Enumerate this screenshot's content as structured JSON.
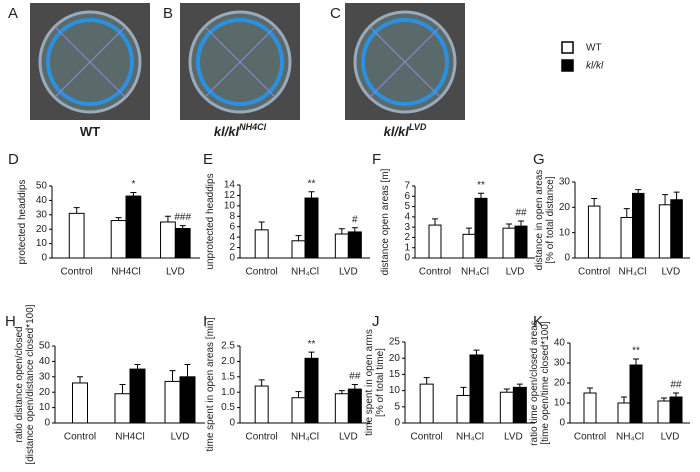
{
  "photos": [
    {
      "letter": "A",
      "caption": "WT"
    },
    {
      "letter": "B",
      "caption": "kl/kl",
      "sup": "NH4Cl"
    },
    {
      "letter": "C",
      "caption": "kl/kl",
      "sup": "LVD"
    }
  ],
  "legend": [
    {
      "label": "WT",
      "color": "#ffffff"
    },
    {
      "label": "kl/kl",
      "color": "#000000"
    }
  ],
  "chart_data": [
    {
      "type": "bar",
      "letter": "D",
      "ylabel": [
        "protected headdips"
      ],
      "categories": [
        "Control",
        "NH4Cl",
        "LVD"
      ],
      "ylim": [
        0,
        50
      ],
      "yticks": [
        0,
        10,
        20,
        30,
        40,
        50
      ],
      "series": [
        {
          "color": "#ffffff",
          "values": [
            31,
            26,
            25
          ],
          "errors": [
            4,
            2,
            4
          ]
        },
        {
          "color": "#000000",
          "values": [
            null,
            43,
            20.5
          ],
          "errors": [
            null,
            2.5,
            2
          ],
          "annotations": [
            null,
            "*",
            "###"
          ]
        }
      ]
    },
    {
      "type": "bar",
      "letter": "E",
      "ylabel": [
        "unprotected headdips"
      ],
      "categories": [
        "Control",
        "NH₄Cl",
        "LVD"
      ],
      "ylim": [
        0,
        14
      ],
      "yticks": [
        0,
        2,
        4,
        6,
        8,
        10,
        12,
        14
      ],
      "series": [
        {
          "color": "#ffffff",
          "values": [
            5.4,
            3.3,
            4.6
          ],
          "errors": [
            1.5,
            1,
            1
          ]
        },
        {
          "color": "#000000",
          "values": [
            null,
            11.5,
            5
          ],
          "errors": [
            null,
            1.2,
            0.8
          ],
          "annotations": [
            null,
            "**",
            "#"
          ]
        }
      ]
    },
    {
      "type": "bar",
      "letter": "F",
      "ylabel": [
        "distance open areas [m]"
      ],
      "categories": [
        "Control",
        "NH₄Cl",
        "LVD"
      ],
      "ylim": [
        0,
        7
      ],
      "yticks": [
        0,
        1,
        2,
        3,
        4,
        5,
        6,
        7
      ],
      "series": [
        {
          "color": "#ffffff",
          "values": [
            3.2,
            2.3,
            2.9
          ],
          "errors": [
            0.6,
            0.6,
            0.4
          ]
        },
        {
          "color": "#000000",
          "values": [
            null,
            5.8,
            3.1
          ],
          "errors": [
            null,
            0.5,
            0.5
          ],
          "annotations": [
            null,
            "**",
            "##"
          ]
        }
      ]
    },
    {
      "type": "bar",
      "letter": "G",
      "ylabel": [
        "distance in open areas",
        "[% of total distance]"
      ],
      "categories": [
        "Control",
        "NH₄Cl",
        "LVD"
      ],
      "ylim": [
        0,
        30
      ],
      "yticks": [
        0,
        10,
        20,
        30
      ],
      "series": [
        {
          "color": "#ffffff",
          "values": [
            20.5,
            16,
            21
          ],
          "errors": [
            3,
            3.5,
            4
          ]
        },
        {
          "color": "#000000",
          "values": [
            null,
            25.5,
            23
          ],
          "errors": [
            null,
            1.5,
            3
          ]
        }
      ]
    },
    {
      "type": "bar",
      "letter": "H",
      "ylabel": [
        "ratio distance open/closed",
        "[distance open/distance closed*100]"
      ],
      "categories": [
        "Control",
        "NH4Cl",
        "LVD"
      ],
      "ylim": [
        0,
        50
      ],
      "yticks": [
        0,
        10,
        20,
        30,
        40,
        50
      ],
      "series": [
        {
          "color": "#ffffff",
          "values": [
            26,
            19,
            27
          ],
          "errors": [
            4,
            6,
            7
          ]
        },
        {
          "color": "#000000",
          "values": [
            null,
            35,
            30
          ],
          "errors": [
            null,
            3,
            8
          ]
        }
      ]
    },
    {
      "type": "bar",
      "letter": "I",
      "ylabel": [
        "time spent in open areas [min]"
      ],
      "categories": [
        "Control",
        "NH₄Cl",
        "LVD"
      ],
      "ylim": [
        0,
        2.5
      ],
      "yticks": [
        0,
        0.5,
        {
          "value": 1,
          "label": "1.0"
        },
        1.5,
        {
          "value": 2,
          "label": "2.0"
        },
        2.5
      ],
      "series": [
        {
          "color": "#ffffff",
          "values": [
            1.2,
            0.82,
            0.95
          ],
          "errors": [
            0.2,
            0.2,
            0.1
          ]
        },
        {
          "color": "#000000",
          "values": [
            null,
            2.1,
            1.1
          ],
          "errors": [
            null,
            0.2,
            0.15
          ],
          "annotations": [
            null,
            "**",
            "##"
          ]
        }
      ]
    },
    {
      "type": "bar",
      "letter": "J",
      "ylabel": [
        "time spent in open arms",
        "[% of total time]"
      ],
      "categories": [
        "Control",
        "NH₄Cl",
        "LVD"
      ],
      "ylim": [
        0,
        25
      ],
      "yticks": [
        0,
        5,
        10,
        15,
        20,
        25
      ],
      "series": [
        {
          "color": "#ffffff",
          "values": [
            12,
            8.5,
            9.5
          ],
          "errors": [
            2,
            2.5,
            1
          ]
        },
        {
          "color": "#000000",
          "values": [
            null,
            21,
            11
          ],
          "errors": [
            null,
            1.5,
            1
          ]
        },
        {
          "color": "#000000",
          "values": [
            null,
            null,
            null
          ]
        }
      ]
    },
    {
      "type": "bar",
      "letter": "K",
      "ylabel": [
        "ratio time open/closed areas",
        "[time open/time closed*100]"
      ],
      "categories": [
        "Control",
        "NH₄Cl",
        "LVD"
      ],
      "ylim": [
        0,
        40
      ],
      "yticks": [
        0,
        10,
        20,
        30,
        40
      ],
      "series": [
        {
          "color": "#ffffff",
          "values": [
            15,
            10,
            11
          ],
          "errors": [
            2.5,
            3,
            1.5
          ]
        },
        {
          "color": "#000000",
          "values": [
            null,
            29,
            13
          ],
          "errors": [
            null,
            3,
            2
          ],
          "annotations": [
            null,
            "**",
            "##"
          ]
        }
      ]
    }
  ]
}
